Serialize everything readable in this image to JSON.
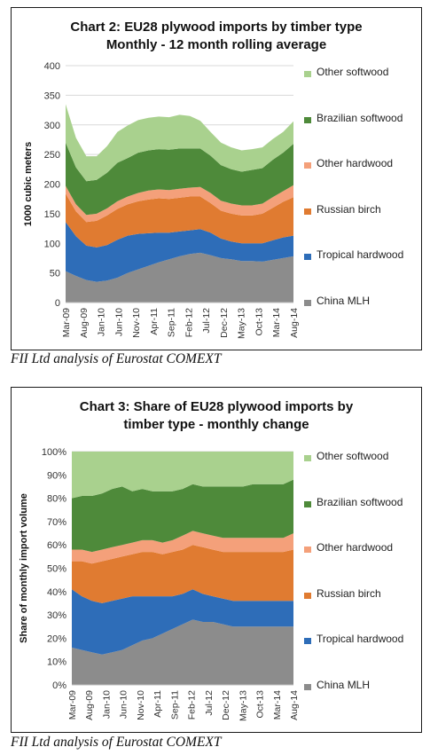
{
  "charts": [
    {
      "title_line1": "Chart 2: EU28 plywood imports by timber type",
      "title_line2": "Monthly - 12 month rolling average",
      "caption": "FII Ltd analysis of Eurostat COMEXT"
    },
    {
      "title_line1": "Chart 3: Share of EU28 plywood imports by",
      "title_line2": "timber type - monthly change",
      "caption": "FII Ltd analysis of Eurostat COMEXT"
    }
  ],
  "colors": {
    "China MLH": "#8c8c8c",
    "Tropical hardwood": "#2e6db8",
    "Russian birch": "#e07b31",
    "Other hardwood": "#f4a07a",
    "Brazilian softwood": "#4e8a3a",
    "Other softwood": "#a9d18e"
  },
  "chart_data": [
    {
      "type": "area",
      "stacked": true,
      "title": "Chart 2: EU28 plywood imports by timber type Monthly - 12 month rolling average",
      "xlabel": "",
      "ylabel": "1000 cubic meters",
      "ylim": [
        0,
        400
      ],
      "yticks": [
        0,
        50,
        100,
        150,
        200,
        250,
        300,
        350,
        400
      ],
      "x_ticks": [
        "Mar-09",
        "Aug-09",
        "Jan-10",
        "Jun-10",
        "Nov-10",
        "Apr-11",
        "Sep-11",
        "Feb-12",
        "Jul-12",
        "Dec-12",
        "May-13",
        "Oct-13",
        "Mar-14",
        "Aug-14"
      ],
      "x": [
        "Mar-09",
        "Jun-09",
        "Sep-09",
        "Dec-09",
        "Mar-10",
        "Jun-10",
        "Sep-10",
        "Dec-10",
        "Mar-11",
        "Jun-11",
        "Sep-11",
        "Dec-11",
        "Mar-12",
        "Jun-12",
        "Sep-12",
        "Dec-12",
        "Mar-13",
        "Jun-13",
        "Sep-13",
        "Dec-13",
        "Mar-14",
        "Jun-14",
        "Sep-14"
      ],
      "legend": "right",
      "grid": true,
      "series": [
        {
          "name": "China MLH",
          "values": [
            53,
            45,
            38,
            35,
            37,
            42,
            50,
            56,
            62,
            68,
            73,
            78,
            82,
            84,
            80,
            75,
            73,
            70,
            70,
            69,
            72,
            75,
            78
          ]
        },
        {
          "name": "Tropical hardwood",
          "values": [
            83,
            67,
            58,
            58,
            60,
            64,
            63,
            60,
            55,
            50,
            45,
            42,
            40,
            40,
            38,
            33,
            30,
            30,
            30,
            31,
            33,
            35,
            35
          ]
        },
        {
          "name": "Russian birch",
          "values": [
            48,
            42,
            40,
            45,
            50,
            52,
            53,
            55,
            57,
            58,
            57,
            57,
            57,
            55,
            50,
            47,
            47,
            47,
            47,
            50,
            55,
            60,
            65
          ]
        },
        {
          "name": "Other hardwood",
          "values": [
            13,
            12,
            12,
            12,
            12,
            13,
            13,
            14,
            15,
            15,
            15,
            15,
            15,
            16,
            17,
            17,
            17,
            17,
            17,
            17,
            18,
            18,
            20
          ]
        },
        {
          "name": "Brazilian softwood",
          "values": [
            73,
            62,
            57,
            57,
            60,
            65,
            65,
            68,
            68,
            68,
            68,
            68,
            66,
            65,
            63,
            60,
            58,
            57,
            60,
            60,
            63,
            65,
            70
          ]
        },
        {
          "name": "Other softwood",
          "values": [
            65,
            50,
            42,
            40,
            45,
            52,
            55,
            55,
            55,
            55,
            55,
            57,
            55,
            47,
            40,
            38,
            37,
            36,
            35,
            35,
            35,
            35,
            38
          ]
        }
      ]
    },
    {
      "type": "area",
      "stacked": true,
      "title": "Chart 3: Share of EU28 plywood imports by timber type - monthly change",
      "xlabel": "",
      "ylabel": "Share of monthly import volume",
      "ylim": [
        0,
        100
      ],
      "yticks": [
        "0%",
        "10%",
        "20%",
        "30%",
        "40%",
        "50%",
        "60%",
        "70%",
        "80%",
        "90%",
        "100%"
      ],
      "x_ticks": [
        "Mar-09",
        "Aug-09",
        "Jan-10",
        "Jun-10",
        "Nov-10",
        "Apr-11",
        "Sep-11",
        "Feb-12",
        "Jul-12",
        "Dec-12",
        "May-13",
        "Oct-13",
        "Mar-14",
        "Aug-14"
      ],
      "x": [
        "Mar-09",
        "Jun-09",
        "Sep-09",
        "Dec-09",
        "Mar-10",
        "Jun-10",
        "Sep-10",
        "Dec-10",
        "Mar-11",
        "Jun-11",
        "Sep-11",
        "Dec-11",
        "Mar-12",
        "Jun-12",
        "Sep-12",
        "Dec-12",
        "Mar-13",
        "Jun-13",
        "Sep-13",
        "Dec-13",
        "Mar-14",
        "Jun-14",
        "Sep-14"
      ],
      "legend": "right",
      "grid": true,
      "series": [
        {
          "name": "China MLH",
          "values": [
            16,
            15,
            14,
            13,
            14,
            15,
            17,
            19,
            20,
            22,
            24,
            26,
            28,
            27,
            27,
            26,
            25,
            25,
            25,
            25,
            25,
            25,
            25
          ]
        },
        {
          "name": "Tropical hardwood",
          "values": [
            25,
            23,
            22,
            22,
            22,
            22,
            21,
            19,
            18,
            16,
            14,
            13,
            13,
            12,
            11,
            11,
            11,
            11,
            11,
            11,
            11,
            11,
            11
          ]
        },
        {
          "name": "Russian birch",
          "values": [
            12,
            15,
            16,
            18,
            18,
            18,
            18,
            19,
            19,
            18,
            19,
            19,
            19,
            20,
            20,
            20,
            21,
            21,
            21,
            21,
            21,
            21,
            22
          ]
        },
        {
          "name": "Other hardwood",
          "values": [
            5,
            5,
            5,
            5,
            5,
            5,
            5,
            5,
            5,
            5,
            5,
            6,
            6,
            6,
            6,
            6,
            6,
            6,
            6,
            6,
            6,
            6,
            7
          ]
        },
        {
          "name": "Brazilian softwood",
          "values": [
            22,
            23,
            24,
            24,
            25,
            25,
            22,
            22,
            21,
            22,
            21,
            20,
            20,
            20,
            21,
            22,
            22,
            22,
            23,
            23,
            23,
            23,
            23
          ]
        },
        {
          "name": "Other softwood",
          "values": [
            20,
            19,
            19,
            18,
            16,
            15,
            17,
            16,
            17,
            17,
            17,
            16,
            14,
            15,
            15,
            15,
            15,
            15,
            14,
            14,
            14,
            14,
            12
          ]
        }
      ]
    }
  ]
}
